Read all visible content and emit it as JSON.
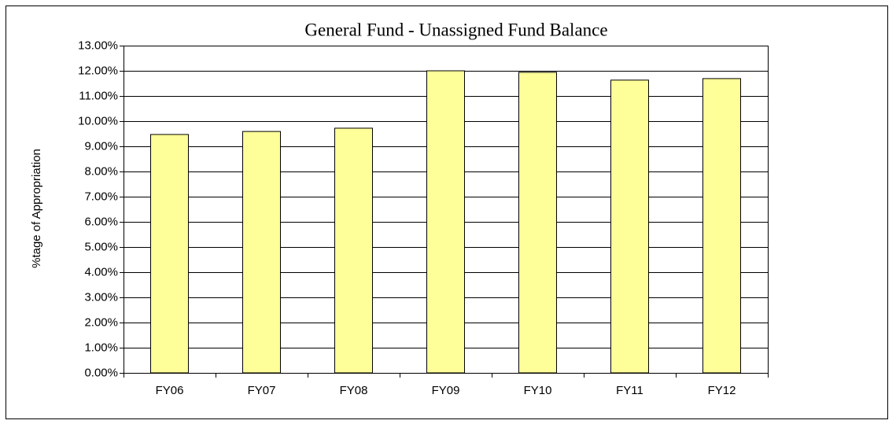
{
  "chart_data": {
    "type": "bar",
    "title": "General Fund - Unassigned Fund Balance",
    "y_label": "%tage of Appropriation",
    "categories": [
      "FY06",
      "FY07",
      "FY08",
      "FY09",
      "FY10",
      "FY11",
      "FY12"
    ],
    "values": [
      9.47,
      9.59,
      9.72,
      12.0,
      11.94,
      11.63,
      11.69
    ],
    "color": "#ffff99",
    "ylim": [
      0,
      13
    ],
    "yticks": [
      {
        "value": 0,
        "label": "0.00%"
      },
      {
        "value": 1,
        "label": "1.00%"
      },
      {
        "value": 2,
        "label": "2.00%"
      },
      {
        "value": 3,
        "label": "3.00%"
      },
      {
        "value": 4,
        "label": "4.00%"
      },
      {
        "value": 5,
        "label": "5.00%"
      },
      {
        "value": 6,
        "label": "6.00%"
      },
      {
        "value": 7,
        "label": "7.00%"
      },
      {
        "value": 8,
        "label": "8.00%"
      },
      {
        "value": 9,
        "label": "9.00%"
      },
      {
        "value": 10,
        "label": "10.00%"
      },
      {
        "value": 11,
        "label": "11.00%"
      },
      {
        "value": 12,
        "label": "12.00%"
      },
      {
        "value": 13,
        "label": "13.00%"
      }
    ],
    "grid": true
  }
}
